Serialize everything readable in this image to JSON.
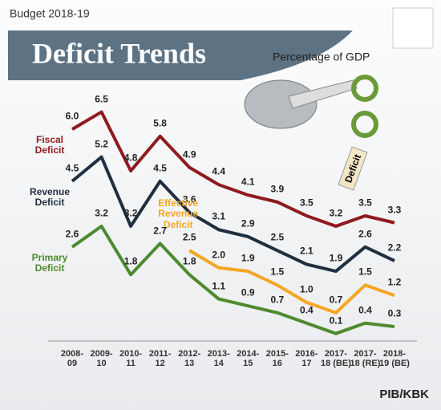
{
  "header": "Budget 2018-19",
  "credit": "PIB/KBK",
  "chart_data": {
    "type": "line",
    "title": "Deficit Trends",
    "subtitle": "Percentage of GDP",
    "annotation": "Deficit",
    "categories": [
      "2008-\n09",
      "2009-\n10",
      "2010-\n11",
      "2011-\n12",
      "2012-\n13",
      "2013-\n14",
      "2014-\n15",
      "2015-\n16",
      "2016-\n17",
      "2017-\n18 (BE)",
      "2017-\n18 (RE)",
      "2018-\n19 (BE)"
    ],
    "ylim": [
      0,
      7
    ],
    "series": [
      {
        "name": "Fiscal\nDeficit",
        "color": "#8e1b1f",
        "values": [
          6.0,
          6.5,
          4.8,
          5.8,
          4.9,
          4.4,
          4.1,
          3.9,
          3.5,
          3.2,
          3.5,
          3.3
        ],
        "value_labels": [
          "6.0",
          "6.5",
          "4.8",
          "5.8",
          "4.9",
          "4.4",
          "4.1",
          "3.9",
          "3.5",
          "3.2",
          "3.5",
          "3.3"
        ]
      },
      {
        "name": "Revenue\nDeficit",
        "color": "#1f2f3f",
        "values": [
          4.5,
          5.2,
          3.2,
          4.5,
          3.6,
          3.1,
          2.9,
          2.5,
          2.1,
          1.9,
          2.6,
          2.2
        ],
        "value_labels": [
          "4.5",
          "5.2",
          "3.2",
          "4.5",
          "3.6",
          "3.1",
          "2.9",
          "2.5",
          "2.1",
          "1.9",
          "2.6",
          "2.2"
        ]
      },
      {
        "name": "Effective\nRevenue\nDeficit",
        "color": "#f5a623",
        "values": [
          null,
          null,
          null,
          null,
          2.5,
          2.0,
          1.9,
          1.5,
          1.0,
          0.7,
          1.5,
          1.2
        ],
        "value_labels": [
          null,
          null,
          null,
          null,
          "2.5",
          "2.0",
          "1.9",
          "1.5",
          "1.0",
          "0.7",
          "1.5",
          "1.2"
        ]
      },
      {
        "name": "Primary\nDeficit",
        "color": "#4e8a2f",
        "values": [
          2.6,
          3.2,
          1.8,
          2.7,
          1.8,
          1.1,
          0.9,
          0.7,
          0.4,
          0.1,
          0.4,
          0.3
        ],
        "value_labels": [
          "2.6",
          "3.2",
          "1.8",
          "2.7",
          "1.8",
          "1.1",
          "0.9",
          "0.7",
          "0.4",
          "0.1",
          "0.4",
          "0.3"
        ]
      }
    ]
  }
}
